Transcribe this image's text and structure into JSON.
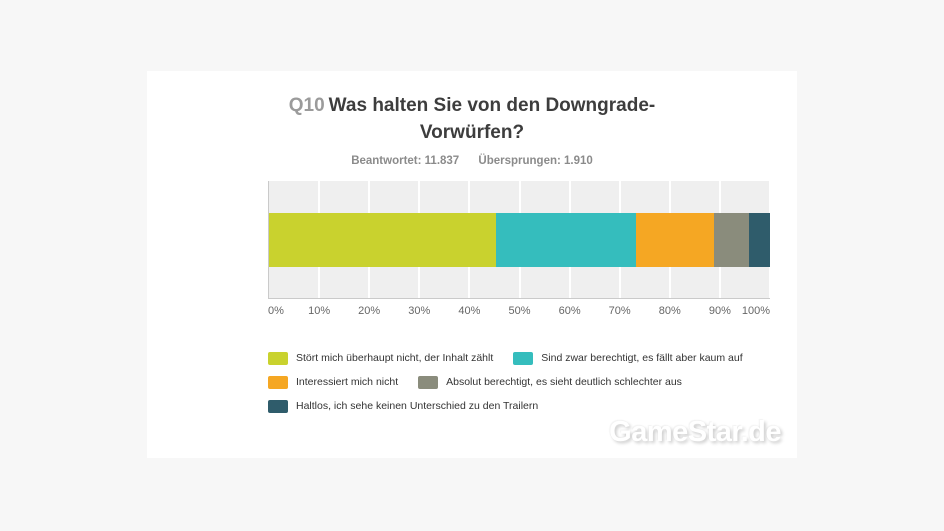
{
  "page": {
    "background_color": "#f7f7f7",
    "card_background_color": "#ffffff"
  },
  "header": {
    "question_number": "Q10",
    "title": "Was halten Sie von den Downgrade-Vorwürfen?",
    "stats": [
      "Beantwortet: 11.837",
      "Übersprungen: 1.910"
    ]
  },
  "chart_data": {
    "type": "bar",
    "variant": "horizontal-stacked-percentage",
    "title": "Q10 Was halten Sie von den Downgrade-Vorwürfen?",
    "answered": "11.837",
    "skipped": "1.910",
    "xlim": [
      0,
      100
    ],
    "x_ticks": [
      "0%",
      "10%",
      "20%",
      "30%",
      "40%",
      "50%",
      "60%",
      "70%",
      "80%",
      "90%",
      "100%"
    ],
    "grid": true,
    "legend_position": "bottom",
    "plot_background": "#efefef",
    "gridline_color": "#ffffff",
    "series": [
      {
        "name": "Stört mich überhaupt nicht, der Inhalt zählt",
        "value": 45.4,
        "color": "#c9d22e"
      },
      {
        "name": "Sind zwar berechtigt, es fällt aber kaum auf",
        "value": 27.8,
        "color": "#35bdbd"
      },
      {
        "name": "Interessiert mich nicht",
        "value": 15.6,
        "color": "#f5a723"
      },
      {
        "name": "Absolut berechtigt, es sieht deutlich schlechter aus",
        "value": 7.0,
        "color": "#8a8c7c"
      },
      {
        "name": "Haltlos, ich sehe keinen Unterschied zu den Trailern",
        "value": 4.2,
        "color": "#2f5c6b"
      }
    ]
  },
  "watermark": {
    "text": "GameStar.de"
  }
}
